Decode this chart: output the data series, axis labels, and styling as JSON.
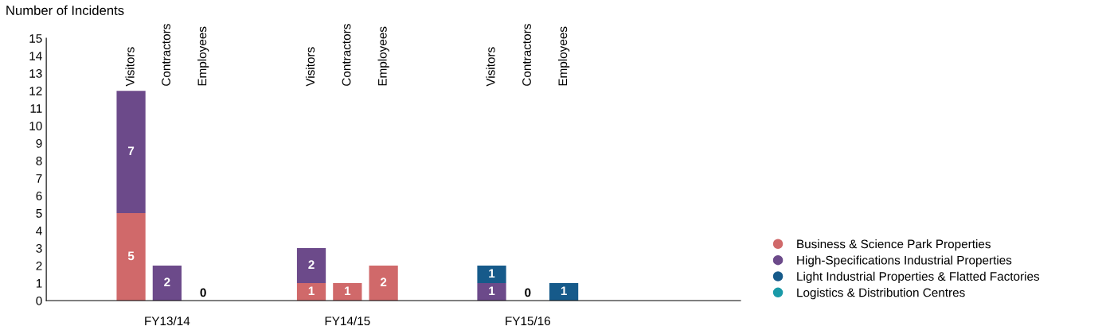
{
  "chart_data": {
    "type": "bar",
    "stacked": true,
    "ylabel": "Number of Incidents",
    "categories": [
      null,
      null,
      "Visitors",
      "Contractors",
      "Employees",
      null,
      null,
      "Visitors",
      "Contractors",
      "Employees",
      null,
      null,
      "Visitors",
      "Contractors",
      "Employees",
      null,
      null,
      null,
      null
    ],
    "series": [
      {
        "name": "Business & Science Park Properties",
        "color": "#d0696a",
        "values": [
          null,
          null,
          5,
          0,
          0,
          null,
          null,
          1,
          1,
          2,
          null,
          null,
          0,
          0,
          0,
          null,
          null,
          null,
          null
        ],
        "value_labels": [
          null,
          null,
          "5",
          null,
          null,
          null,
          null,
          "1",
          "1",
          "2",
          null,
          null,
          null,
          null,
          null,
          null,
          null,
          null,
          null
        ]
      },
      {
        "name": "High-Specifications Industrial Properties",
        "color": "#6c4a8a",
        "values": [
          null,
          null,
          7,
          2,
          0,
          null,
          null,
          2,
          0,
          0,
          null,
          null,
          1,
          0,
          0,
          null,
          null,
          null,
          null
        ],
        "value_labels": [
          null,
          null,
          "7",
          "2",
          null,
          null,
          null,
          "2",
          null,
          null,
          null,
          null,
          "1",
          null,
          null,
          null,
          null,
          null,
          null
        ]
      },
      {
        "name": "Light Industrial Properties & Flatted Factories",
        "color": "#165a8a",
        "values": [
          null,
          null,
          0,
          0,
          0,
          null,
          null,
          0,
          0,
          0,
          null,
          null,
          1,
          0,
          1,
          null,
          null,
          null,
          null
        ],
        "value_labels": [
          null,
          null,
          null,
          null,
          null,
          null,
          null,
          null,
          null,
          null,
          null,
          null,
          "1",
          null,
          "1",
          null,
          null,
          null,
          null
        ]
      },
      {
        "name": "Logistics & Distribution Centres",
        "color": "#1a9aa8",
        "values": [
          null,
          null,
          0,
          0,
          0,
          null,
          null,
          0,
          0,
          0,
          null,
          null,
          0,
          0,
          0,
          null,
          null,
          null,
          null
        ]
      }
    ],
    "totals": [
      null,
      null,
      null,
      null,
      "0",
      null,
      null,
      null,
      null,
      null,
      null,
      null,
      null,
      "0",
      null,
      null,
      null,
      null,
      null
    ],
    "annotations": [
      "FY13/14",
      "FY14/15",
      "FY15/16"
    ],
    "ylim": [
      0,
      15
    ],
    "yticks": [
      0,
      1,
      2,
      3,
      4,
      5,
      6,
      7,
      8,
      9,
      10,
      11,
      12,
      13,
      14,
      15
    ],
    "grid": false,
    "legend": "bottom right",
    "marker": "circle"
  }
}
